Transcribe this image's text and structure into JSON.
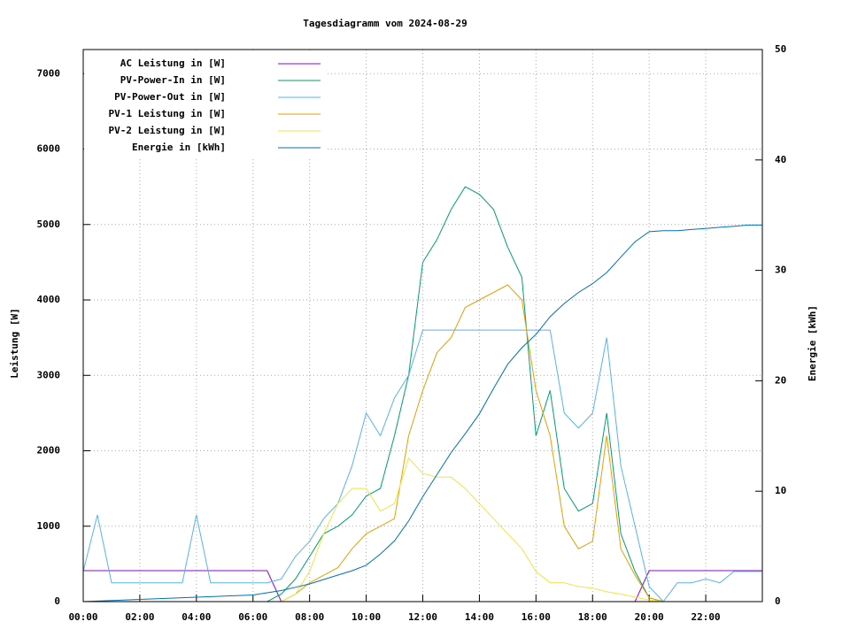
{
  "chart_data": {
    "type": "line",
    "title": "Tagesdiagramm vom 2024-08-29",
    "y_label": "Leistung [W]",
    "y2_label": "Energie [kWh]",
    "x": [
      0,
      0.5,
      1,
      1.5,
      2,
      2.5,
      3,
      3.5,
      4,
      4.5,
      5,
      5.5,
      6,
      6.5,
      7,
      7.5,
      8,
      8.5,
      9,
      9.5,
      10,
      10.5,
      11,
      11.5,
      12,
      12.5,
      13,
      13.5,
      14,
      14.5,
      15,
      15.5,
      16,
      16.5,
      17,
      17.5,
      18,
      18.5,
      19,
      19.5,
      20,
      20.5,
      21,
      21.5,
      22,
      22.5,
      23,
      23.5,
      24
    ],
    "xlim": [
      0,
      24
    ],
    "xticks": [
      {
        "value": 0,
        "label": "00:00"
      },
      {
        "value": 2,
        "label": "02:00"
      },
      {
        "value": 4,
        "label": "04:00"
      },
      {
        "value": 6,
        "label": "06:00"
      },
      {
        "value": 8,
        "label": "08:00"
      },
      {
        "value": 10,
        "label": "10:00"
      },
      {
        "value": 12,
        "label": "12:00"
      },
      {
        "value": 14,
        "label": "14:00"
      },
      {
        "value": 16,
        "label": "16:00"
      },
      {
        "value": 18,
        "label": "18:00"
      },
      {
        "value": 20,
        "label": "20:00"
      },
      {
        "value": 22,
        "label": "22:00"
      }
    ],
    "ylim": [
      0,
      7320
    ],
    "yticks": [
      0,
      1000,
      2000,
      3000,
      4000,
      5000,
      6000,
      7000
    ],
    "y2lim": [
      0,
      50
    ],
    "y2ticks": [
      0,
      10,
      20,
      30,
      40,
      50
    ],
    "grid": true,
    "legend": "top-left",
    "series": [
      {
        "name": "AC Leistung in [W]",
        "color": "#9400d3",
        "values": [
          410,
          410,
          410,
          410,
          410,
          410,
          410,
          410,
          410,
          410,
          410,
          410,
          410,
          410,
          0,
          0,
          0,
          0,
          0,
          0,
          0,
          0,
          0,
          0,
          0,
          0,
          0,
          0,
          0,
          0,
          0,
          0,
          0,
          0,
          0,
          0,
          0,
          0,
          0,
          0,
          410,
          410,
          410,
          410,
          410,
          410,
          410,
          410,
          410
        ]
      },
      {
        "name": "PV-Power-In in [W]",
        "color": "#009e73",
        "values": [
          0,
          0,
          0,
          0,
          0,
          0,
          0,
          0,
          0,
          0,
          0,
          0,
          0,
          0,
          100,
          300,
          600,
          900,
          1000,
          1150,
          1400,
          1500,
          2200,
          3000,
          4500,
          4800,
          5200,
          5500,
          5400,
          5200,
          4700,
          4300,
          2200,
          2800,
          1500,
          1200,
          1300,
          2500,
          900,
          400,
          50,
          0,
          0,
          0,
          0,
          0,
          0,
          0,
          0
        ]
      },
      {
        "name": "PV-Power-Out in [W]",
        "color": "#56b4e9",
        "values": [
          400,
          1150,
          250,
          250,
          250,
          250,
          250,
          250,
          1150,
          250,
          250,
          250,
          250,
          250,
          300,
          600,
          800,
          1100,
          1300,
          1800,
          2500,
          2200,
          2700,
          3000,
          3600,
          3600,
          3600,
          3600,
          3600,
          3600,
          3600,
          3600,
          3600,
          3600,
          2500,
          2300,
          2500,
          3500,
          1800,
          1000,
          200,
          0,
          250,
          250,
          300,
          250,
          400,
          400,
          400
        ]
      },
      {
        "name": "PV-1 Leistung in [W]",
        "color": "#e69f00",
        "values": [
          0,
          0,
          0,
          0,
          0,
          0,
          0,
          0,
          0,
          0,
          0,
          0,
          0,
          0,
          0,
          100,
          250,
          350,
          450,
          700,
          900,
          1000,
          1100,
          2200,
          2800,
          3300,
          3500,
          3900,
          4000,
          4100,
          4200,
          4000,
          2800,
          2200,
          1000,
          700,
          800,
          2200,
          700,
          350,
          50,
          0,
          0,
          0,
          0,
          0,
          0,
          0,
          0
        ]
      },
      {
        "name": "PV-2 Leistung in [W]",
        "color": "#f0e442",
        "values": [
          0,
          0,
          0,
          0,
          0,
          0,
          0,
          0,
          0,
          0,
          0,
          0,
          0,
          0,
          0,
          100,
          400,
          900,
          1300,
          1500,
          1500,
          1200,
          1300,
          1900,
          1700,
          1650,
          1650,
          1500,
          1300,
          1100,
          900,
          700,
          400,
          250,
          250,
          200,
          180,
          130,
          100,
          60,
          20,
          0,
          0,
          0,
          0,
          0,
          0,
          0,
          0
        ]
      },
      {
        "name": "Energie in [kWh]",
        "color": "#0072b2",
        "axis": "y2",
        "values": [
          0,
          0.05,
          0.1,
          0.15,
          0.2,
          0.25,
          0.3,
          0.35,
          0.4,
          0.45,
          0.5,
          0.55,
          0.6,
          0.8,
          1.0,
          1.3,
          1.6,
          2.0,
          2.4,
          2.8,
          3.3,
          4.3,
          5.5,
          7.3,
          9.5,
          11.5,
          13.5,
          15.2,
          17.0,
          19.3,
          21.5,
          23.0,
          24.2,
          25.8,
          27.0,
          28.0,
          28.8,
          29.8,
          31.2,
          32.6,
          33.5,
          33.6,
          33.6,
          33.7,
          33.8,
          33.9,
          34.0,
          34.1,
          34.1
        ]
      }
    ]
  }
}
